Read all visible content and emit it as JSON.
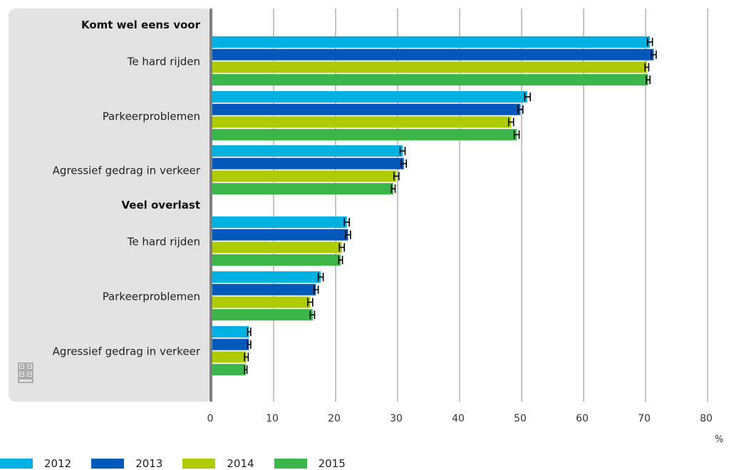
{
  "chart_data": {
    "type": "bar",
    "orientation": "horizontal",
    "groups": [
      {
        "label": "Komt wel eens voor",
        "categories": [
          {
            "label": "Te hard rijden",
            "values": [
              70.7,
              71.3,
              70.2,
              70.4
            ],
            "ci_low": [
              70.3,
              70.9,
              69.9,
              70.1
            ],
            "ci_high": [
              71.1,
              71.7,
              70.5,
              70.7
            ]
          },
          {
            "label": "Parkeerproblemen",
            "values": [
              50.9,
              49.8,
              48.3,
              49.2
            ],
            "ci_low": [
              50.5,
              49.4,
              47.9,
              48.8
            ],
            "ci_high": [
              51.4,
              50.2,
              48.7,
              49.6
            ]
          },
          {
            "label": "Agressief gedrag in verkeer",
            "values": [
              30.8,
              31.0,
              29.8,
              29.3
            ],
            "ci_low": [
              30.4,
              30.6,
              29.4,
              29.0
            ],
            "ci_high": [
              31.2,
              31.4,
              30.2,
              29.6
            ]
          }
        ]
      },
      {
        "label": "Veel overlast",
        "categories": [
          {
            "label": "Te hard rijden",
            "values": [
              21.8,
              22.0,
              21.0,
              20.8
            ],
            "ci_low": [
              21.4,
              21.6,
              20.6,
              20.5
            ],
            "ci_high": [
              22.2,
              22.4,
              21.4,
              21.1
            ]
          },
          {
            "label": "Parkeerproblemen",
            "values": [
              17.6,
              16.8,
              15.9,
              16.3
            ],
            "ci_low": [
              17.2,
              16.5,
              15.5,
              15.9
            ],
            "ci_high": [
              18.0,
              17.2,
              16.3,
              16.6
            ]
          },
          {
            "label": "Agressief gedrag in verkeer",
            "values": [
              6.0,
              6.0,
              5.6,
              5.5
            ],
            "ci_low": [
              5.8,
              5.8,
              5.3,
              5.3
            ],
            "ci_high": [
              6.3,
              6.3,
              5.9,
              5.7
            ]
          }
        ]
      }
    ],
    "series": [
      {
        "name": "2012",
        "color": "#00b1e1"
      },
      {
        "name": "2013",
        "color": "#0058b8"
      },
      {
        "name": "2014",
        "color": "#afcb05"
      },
      {
        "name": "2015",
        "color": "#3cb54a"
      }
    ],
    "xlim": [
      0,
      80
    ],
    "xticks": [
      0,
      10,
      20,
      30,
      40,
      50,
      60,
      70,
      80
    ],
    "xunit": "%",
    "grid": true,
    "legend_position": "bottom-left",
    "error_bars": true
  },
  "colors": {
    "label_panel": "#e3e3e4",
    "axis_line": "#7f7f7f",
    "grid": "#8a8a8a"
  },
  "logo": {
    "icon": "cbs-logo-icon"
  }
}
